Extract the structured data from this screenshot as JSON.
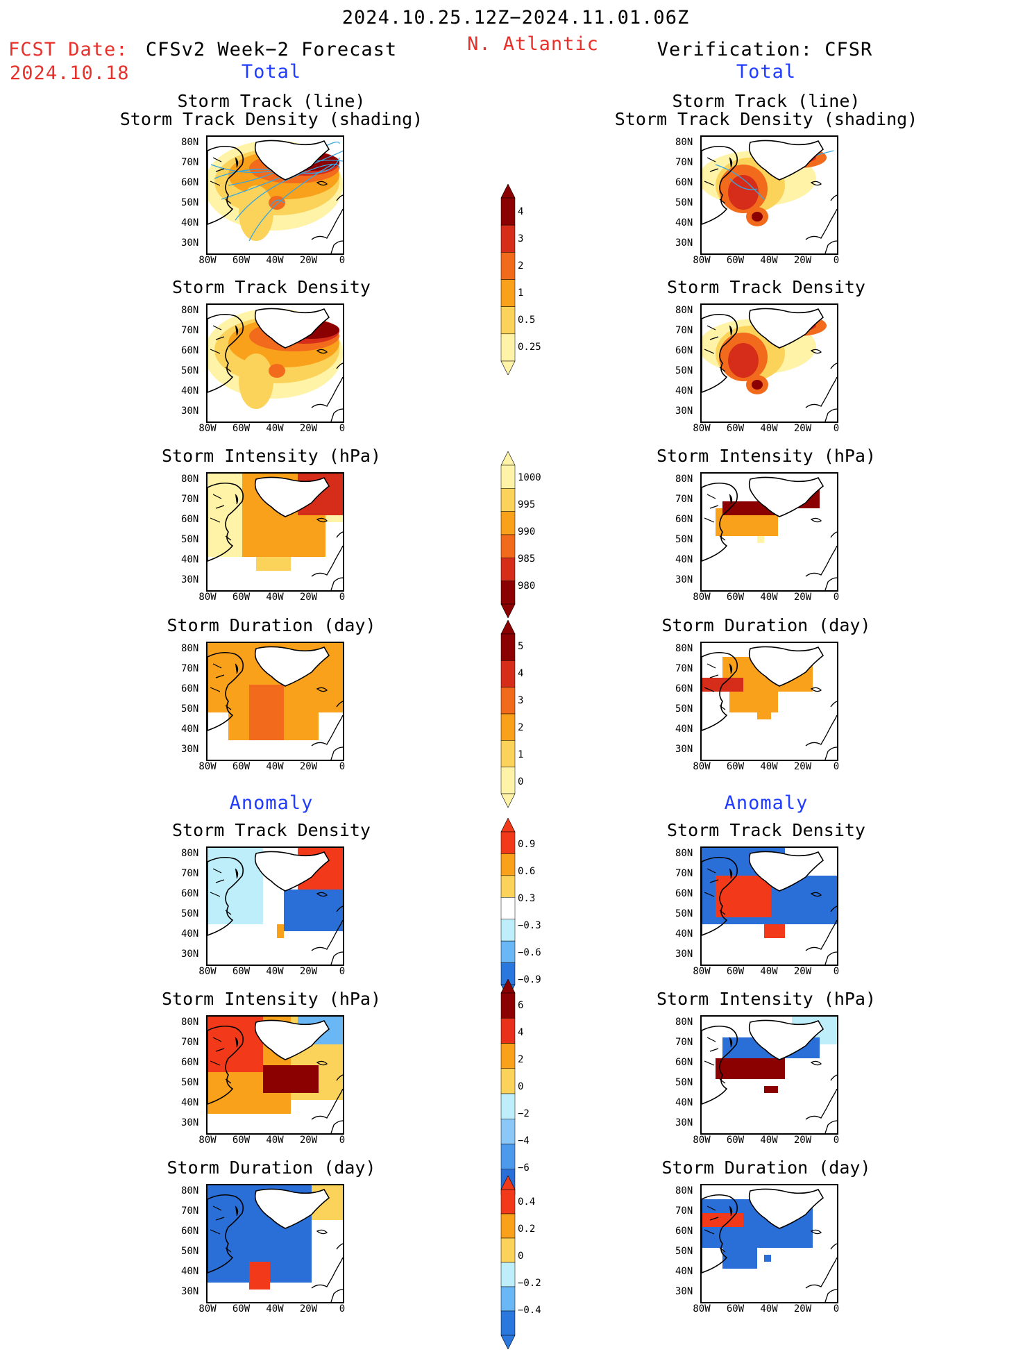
{
  "header": {
    "date_range": "2024.10.25.12Z−2024.11.01.06Z",
    "fcst_date_label": "FCST Date:",
    "fcst_date": "2024.10.18",
    "forecast_title": "CFSv2 Week−2 Forecast",
    "region": "N. Atlantic",
    "verification_title": "Verification: CFSR",
    "total_label": "Total",
    "anomaly_label": "Anomaly"
  },
  "axes": {
    "lat_labels": [
      "80N",
      "70N",
      "60N",
      "50N",
      "40N",
      "30N"
    ],
    "lon_labels": [
      "80W",
      "60W",
      "40W",
      "20W",
      "0"
    ]
  },
  "panels": [
    {
      "title_1": "Storm Track (line)",
      "title_2": "Storm Track Density (shading)",
      "field": "track_density_with_tracks",
      "section": "Total"
    },
    {
      "title_1": "Storm Track Density",
      "field": "track_density",
      "section": "Total"
    },
    {
      "title_1": "Storm Intensity (hPa)",
      "field": "intensity",
      "section": "Total"
    },
    {
      "title_1": "Storm Duration (day)",
      "field": "duration",
      "section": "Total"
    },
    {
      "title_1": "Storm Track Density",
      "field": "track_density_anom",
      "section": "Anomaly"
    },
    {
      "title_1": "Storm Intensity (hPa)",
      "field": "intensity_anom",
      "section": "Anomaly"
    },
    {
      "title_1": "Storm Duration (day)",
      "field": "duration_anom",
      "section": "Anomaly"
    }
  ],
  "colorbars": {
    "density": {
      "labels": [
        "4",
        "3",
        "2",
        "1",
        "0.5",
        "0.25"
      ],
      "colors": [
        "#8b0000",
        "#d62c1a",
        "#f26b1d",
        "#f9a11b",
        "#fcd35a",
        "#fff3a8"
      ]
    },
    "intensity": {
      "labels": [
        "1000",
        "995",
        "990",
        "985",
        "980"
      ],
      "colors": [
        "#fff3a8",
        "#fcd35a",
        "#f9a11b",
        "#f26b1d",
        "#d62c1a",
        "#8b0000"
      ]
    },
    "duration": {
      "labels": [
        "5",
        "4",
        "3",
        "2",
        "1",
        "0"
      ],
      "colors": [
        "#8b0000",
        "#d62c1a",
        "#f26b1d",
        "#f9a11b",
        "#fcd35a",
        "#fff3a8"
      ]
    },
    "density_anom": {
      "labels": [
        "0.9",
        "0.6",
        "0.3",
        "−0.3",
        "−0.6",
        "−0.9"
      ],
      "colors": [
        "#f23a1a",
        "#f9a11b",
        "#fcd35a",
        "#ffffff",
        "#bdeefa",
        "#6ab7f5",
        "#2a78dd"
      ]
    },
    "intensity_anom": {
      "labels": [
        "6",
        "4",
        "2",
        "0",
        "−2",
        "−4",
        "−6"
      ],
      "colors": [
        "#8b0000",
        "#e8301a",
        "#f9a11b",
        "#fcd35a",
        "#bdeefa",
        "#8cc8f7",
        "#4d99ec",
        "#2a6fd8"
      ]
    },
    "duration_anom": {
      "labels": [
        "0.4",
        "0.2",
        "0",
        "−0.2",
        "−0.4"
      ],
      "colors": [
        "#f23a1a",
        "#f9a11b",
        "#fcd35a",
        "#bdeefa",
        "#6ab7f5",
        "#2a78dd"
      ]
    }
  }
}
